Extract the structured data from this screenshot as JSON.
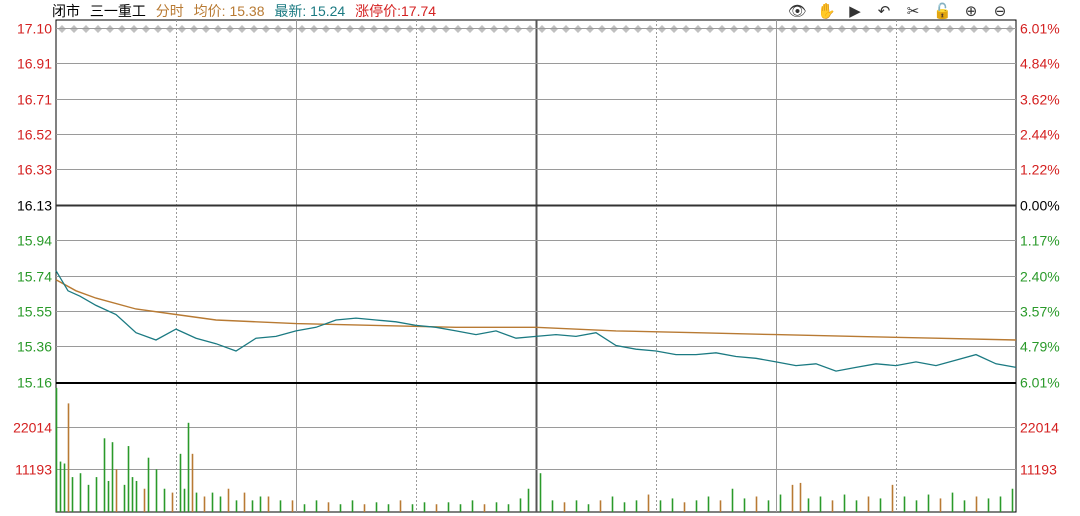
{
  "header": {
    "status": "闭市",
    "stock_name": "三一重工",
    "mode": "分时",
    "avg_label": "均价: 15.38",
    "latest_label": "最新: 15.24",
    "limit_up_label": "涨停价:17.74"
  },
  "toolbar": [
    {
      "name": "eye-icon",
      "glyph": "👁"
    },
    {
      "name": "hand-icon",
      "glyph": "✋"
    },
    {
      "name": "play-icon",
      "glyph": "▶"
    },
    {
      "name": "undo-icon",
      "glyph": "↶"
    },
    {
      "name": "scissors-icon",
      "glyph": "✂"
    },
    {
      "name": "lock-icon",
      "glyph": "🔓"
    },
    {
      "name": "zoom-in-icon",
      "glyph": "⊕"
    },
    {
      "name": "zoom-out-icon",
      "glyph": "⊖"
    }
  ],
  "colors": {
    "up": "#d42020",
    "down": "#2a9a2a",
    "flat": "#000000",
    "price_line": "#1b7a82",
    "avg_line": "#b87a33",
    "vol_down": "#2a9a2a",
    "vol_up": "#b87a33",
    "grid": "#9a9a9a"
  },
  "chart_data": {
    "type": "line",
    "prev_close": 16.13,
    "ylim": [
      15.16,
      17.1
    ],
    "price_ticks": [
      {
        "v": 17.1,
        "label": "17.10",
        "pct": "6.01%",
        "dir": "up"
      },
      {
        "v": 16.91,
        "label": "16.91",
        "pct": "4.84%",
        "dir": "up"
      },
      {
        "v": 16.71,
        "label": "16.71",
        "pct": "3.62%",
        "dir": "up"
      },
      {
        "v": 16.52,
        "label": "16.52",
        "pct": "2.44%",
        "dir": "up"
      },
      {
        "v": 16.33,
        "label": "16.33",
        "pct": "1.22%",
        "dir": "up"
      },
      {
        "v": 16.13,
        "label": "16.13",
        "pct": "0.00%",
        "dir": "flat"
      },
      {
        "v": 15.94,
        "label": "15.94",
        "pct": "1.17%",
        "dir": "down"
      },
      {
        "v": 15.74,
        "label": "15.74",
        "pct": "2.40%",
        "dir": "down"
      },
      {
        "v": 15.55,
        "label": "15.55",
        "pct": "3.57%",
        "dir": "down"
      },
      {
        "v": 15.36,
        "label": "15.36",
        "pct": "4.79%",
        "dir": "down"
      },
      {
        "v": 15.16,
        "label": "15.16",
        "pct": "6.01%",
        "dir": "down"
      }
    ],
    "volume_ticks": [
      {
        "v": 22014,
        "label": "22014"
      },
      {
        "v": 11193,
        "label": "11193"
      }
    ],
    "volume_max": 33000,
    "series": [
      {
        "key": "price",
        "x": [
          0,
          3,
          6,
          10,
          15,
          20,
          25,
          30,
          35,
          40,
          45,
          50,
          55,
          60,
          65,
          70,
          75,
          80,
          85,
          90,
          95,
          100,
          105,
          110,
          115,
          120,
          125,
          130,
          135,
          140,
          145,
          150,
          155,
          160,
          165,
          170,
          175,
          180,
          185,
          190,
          195,
          200,
          205,
          210,
          215,
          220,
          225,
          230,
          235,
          240
        ],
        "values": [
          15.77,
          15.66,
          15.63,
          15.58,
          15.53,
          15.43,
          15.39,
          15.45,
          15.4,
          15.37,
          15.33,
          15.4,
          15.41,
          15.44,
          15.46,
          15.5,
          15.51,
          15.5,
          15.49,
          15.47,
          15.46,
          15.44,
          15.42,
          15.44,
          15.4,
          15.41,
          15.42,
          15.41,
          15.43,
          15.36,
          15.34,
          15.33,
          15.31,
          15.31,
          15.32,
          15.3,
          15.29,
          15.27,
          15.25,
          15.26,
          15.22,
          15.24,
          15.26,
          15.25,
          15.27,
          15.25,
          15.28,
          15.31,
          15.26,
          15.24
        ]
      },
      {
        "key": "avg",
        "x": [
          0,
          5,
          10,
          20,
          30,
          40,
          50,
          60,
          80,
          100,
          120,
          140,
          160,
          180,
          200,
          220,
          240
        ],
        "values": [
          15.72,
          15.66,
          15.62,
          15.56,
          15.53,
          15.5,
          15.49,
          15.48,
          15.47,
          15.46,
          15.46,
          15.44,
          15.43,
          15.42,
          15.41,
          15.4,
          15.39
        ]
      }
    ],
    "volume": [
      {
        "x": 0,
        "v": 32000,
        "dir": "down"
      },
      {
        "x": 1,
        "v": 13000,
        "dir": "down"
      },
      {
        "x": 2,
        "v": 12500,
        "dir": "down"
      },
      {
        "x": 3,
        "v": 28000,
        "dir": "up"
      },
      {
        "x": 4,
        "v": 9000,
        "dir": "down"
      },
      {
        "x": 6,
        "v": 10000,
        "dir": "down"
      },
      {
        "x": 8,
        "v": 7000,
        "dir": "down"
      },
      {
        "x": 10,
        "v": 9000,
        "dir": "down"
      },
      {
        "x": 12,
        "v": 19000,
        "dir": "down"
      },
      {
        "x": 13,
        "v": 8000,
        "dir": "down"
      },
      {
        "x": 14,
        "v": 18000,
        "dir": "down"
      },
      {
        "x": 15,
        "v": 11000,
        "dir": "up"
      },
      {
        "x": 17,
        "v": 7000,
        "dir": "down"
      },
      {
        "x": 18,
        "v": 17000,
        "dir": "down"
      },
      {
        "x": 19,
        "v": 9000,
        "dir": "down"
      },
      {
        "x": 20,
        "v": 8000,
        "dir": "down"
      },
      {
        "x": 22,
        "v": 6000,
        "dir": "up"
      },
      {
        "x": 23,
        "v": 14000,
        "dir": "down"
      },
      {
        "x": 25,
        "v": 11000,
        "dir": "down"
      },
      {
        "x": 27,
        "v": 6000,
        "dir": "down"
      },
      {
        "x": 29,
        "v": 5000,
        "dir": "up"
      },
      {
        "x": 31,
        "v": 15000,
        "dir": "down"
      },
      {
        "x": 32,
        "v": 6000,
        "dir": "down"
      },
      {
        "x": 33,
        "v": 23000,
        "dir": "down"
      },
      {
        "x": 34,
        "v": 15000,
        "dir": "up"
      },
      {
        "x": 35,
        "v": 5000,
        "dir": "down"
      },
      {
        "x": 37,
        "v": 4000,
        "dir": "up"
      },
      {
        "x": 39,
        "v": 5000,
        "dir": "down"
      },
      {
        "x": 41,
        "v": 4000,
        "dir": "down"
      },
      {
        "x": 43,
        "v": 6000,
        "dir": "up"
      },
      {
        "x": 45,
        "v": 3000,
        "dir": "down"
      },
      {
        "x": 47,
        "v": 5000,
        "dir": "up"
      },
      {
        "x": 49,
        "v": 3000,
        "dir": "down"
      },
      {
        "x": 51,
        "v": 4000,
        "dir": "down"
      },
      {
        "x": 53,
        "v": 4000,
        "dir": "up"
      },
      {
        "x": 56,
        "v": 3000,
        "dir": "down"
      },
      {
        "x": 59,
        "v": 3000,
        "dir": "up"
      },
      {
        "x": 62,
        "v": 2000,
        "dir": "down"
      },
      {
        "x": 65,
        "v": 3000,
        "dir": "down"
      },
      {
        "x": 68,
        "v": 2500,
        "dir": "up"
      },
      {
        "x": 71,
        "v": 2000,
        "dir": "down"
      },
      {
        "x": 74,
        "v": 3000,
        "dir": "down"
      },
      {
        "x": 77,
        "v": 2000,
        "dir": "up"
      },
      {
        "x": 80,
        "v": 2500,
        "dir": "down"
      },
      {
        "x": 83,
        "v": 2000,
        "dir": "down"
      },
      {
        "x": 86,
        "v": 3000,
        "dir": "up"
      },
      {
        "x": 89,
        "v": 2000,
        "dir": "down"
      },
      {
        "x": 92,
        "v": 2500,
        "dir": "down"
      },
      {
        "x": 95,
        "v": 2000,
        "dir": "up"
      },
      {
        "x": 98,
        "v": 2500,
        "dir": "down"
      },
      {
        "x": 101,
        "v": 2000,
        "dir": "down"
      },
      {
        "x": 104,
        "v": 3000,
        "dir": "down"
      },
      {
        "x": 107,
        "v": 2000,
        "dir": "up"
      },
      {
        "x": 110,
        "v": 2500,
        "dir": "down"
      },
      {
        "x": 113,
        "v": 2000,
        "dir": "down"
      },
      {
        "x": 116,
        "v": 3500,
        "dir": "down"
      },
      {
        "x": 118,
        "v": 6000,
        "dir": "down"
      },
      {
        "x": 121,
        "v": 10000,
        "dir": "down"
      },
      {
        "x": 124,
        "v": 3000,
        "dir": "down"
      },
      {
        "x": 127,
        "v": 2500,
        "dir": "up"
      },
      {
        "x": 130,
        "v": 3000,
        "dir": "down"
      },
      {
        "x": 133,
        "v": 2000,
        "dir": "down"
      },
      {
        "x": 136,
        "v": 3000,
        "dir": "up"
      },
      {
        "x": 139,
        "v": 4000,
        "dir": "down"
      },
      {
        "x": 142,
        "v": 2500,
        "dir": "down"
      },
      {
        "x": 145,
        "v": 3000,
        "dir": "down"
      },
      {
        "x": 148,
        "v": 4500,
        "dir": "up"
      },
      {
        "x": 151,
        "v": 3000,
        "dir": "down"
      },
      {
        "x": 154,
        "v": 3500,
        "dir": "down"
      },
      {
        "x": 157,
        "v": 2500,
        "dir": "up"
      },
      {
        "x": 160,
        "v": 3000,
        "dir": "down"
      },
      {
        "x": 163,
        "v": 4000,
        "dir": "down"
      },
      {
        "x": 166,
        "v": 3000,
        "dir": "up"
      },
      {
        "x": 169,
        "v": 6000,
        "dir": "down"
      },
      {
        "x": 172,
        "v": 3500,
        "dir": "down"
      },
      {
        "x": 175,
        "v": 4000,
        "dir": "up"
      },
      {
        "x": 178,
        "v": 3000,
        "dir": "down"
      },
      {
        "x": 181,
        "v": 4500,
        "dir": "down"
      },
      {
        "x": 184,
        "v": 7000,
        "dir": "up"
      },
      {
        "x": 186,
        "v": 7500,
        "dir": "up"
      },
      {
        "x": 188,
        "v": 3500,
        "dir": "down"
      },
      {
        "x": 191,
        "v": 4000,
        "dir": "down"
      },
      {
        "x": 194,
        "v": 3000,
        "dir": "up"
      },
      {
        "x": 197,
        "v": 4500,
        "dir": "down"
      },
      {
        "x": 200,
        "v": 3000,
        "dir": "down"
      },
      {
        "x": 203,
        "v": 4000,
        "dir": "up"
      },
      {
        "x": 206,
        "v": 3500,
        "dir": "down"
      },
      {
        "x": 209,
        "v": 7000,
        "dir": "up"
      },
      {
        "x": 212,
        "v": 4000,
        "dir": "down"
      },
      {
        "x": 215,
        "v": 3000,
        "dir": "down"
      },
      {
        "x": 218,
        "v": 4500,
        "dir": "down"
      },
      {
        "x": 221,
        "v": 3500,
        "dir": "up"
      },
      {
        "x": 224,
        "v": 5000,
        "dir": "down"
      },
      {
        "x": 227,
        "v": 3000,
        "dir": "down"
      },
      {
        "x": 230,
        "v": 4000,
        "dir": "up"
      },
      {
        "x": 233,
        "v": 3500,
        "dir": "down"
      },
      {
        "x": 236,
        "v": 4000,
        "dir": "down"
      },
      {
        "x": 239,
        "v": 6000,
        "dir": "down"
      }
    ]
  }
}
